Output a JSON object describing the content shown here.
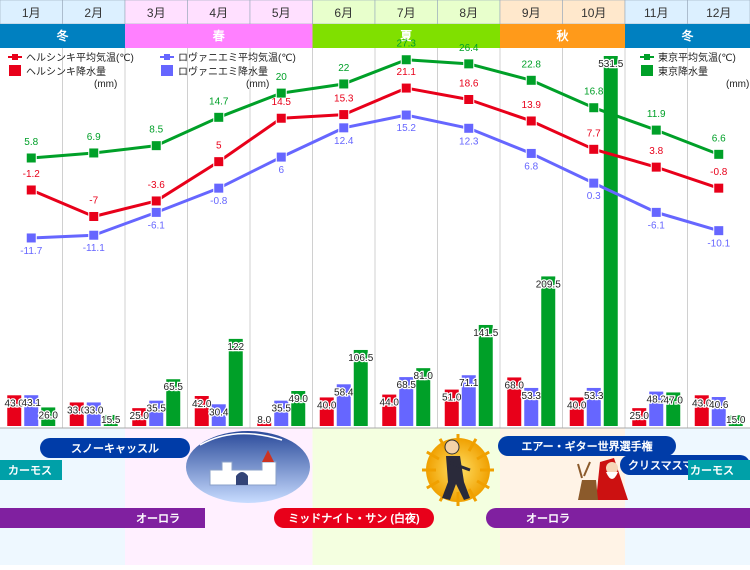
{
  "colors": {
    "helsinki": "#e8001a",
    "rovaniemi": "#6666ff",
    "tokyo": "#00a028",
    "season_winter": "#0080c0",
    "season_spring": "#ff80ff",
    "season_summer": "#80e000",
    "season_autumn": "#ff9a1a",
    "event_blue": "#003ca8",
    "event_purple": "#8020a0",
    "event_teal": "#00a0a8"
  },
  "chart_data": {
    "type": "line",
    "categories": [
      "1月",
      "2月",
      "3月",
      "4月",
      "5月",
      "6月",
      "7月",
      "8月",
      "9月",
      "10月",
      "11月",
      "12月"
    ],
    "seasons": [
      {
        "label": "冬",
        "months": [
          "1月",
          "2月"
        ],
        "color_key": "season_winter"
      },
      {
        "label": "春",
        "months": [
          "3月",
          "4月",
          "5月"
        ],
        "color_key": "season_spring"
      },
      {
        "label": "夏",
        "months": [
          "6月",
          "7月",
          "8月"
        ],
        "color_key": "season_summer"
      },
      {
        "label": "秋",
        "months": [
          "9月",
          "10月"
        ],
        "color_key": "season_autumn"
      },
      {
        "label": "冬",
        "months": [
          "11月",
          "12月"
        ],
        "color_key": "season_winter"
      }
    ],
    "temperature_series": [
      {
        "name": "東京平均気温(℃)",
        "color_key": "tokyo",
        "values": [
          5.8,
          6.9,
          8.5,
          14.7,
          20.0,
          22.0,
          27.3,
          26.4,
          22.8,
          16.8,
          11.9,
          6.6
        ]
      },
      {
        "name": "ヘルシンキ平均気温(℃)",
        "color_key": "helsinki",
        "values": [
          -1.2,
          -7.0,
          -3.6,
          5.0,
          14.5,
          15.3,
          21.1,
          18.6,
          13.9,
          7.7,
          3.8,
          -0.8
        ]
      },
      {
        "name": "ロヴァニエミ平均気温(℃)",
        "color_key": "rovaniemi",
        "values": [
          -11.7,
          -11.1,
          -6.1,
          -0.8,
          6.0,
          12.4,
          15.2,
          12.3,
          6.8,
          0.3,
          -6.1,
          -10.1
        ]
      }
    ],
    "precipitation_series": [
      {
        "name": "ヘルシンキ降水量(mm)",
        "color_key": "helsinki",
        "values": [
          43.0,
          33.0,
          25.0,
          42.0,
          8.0,
          40.0,
          44.0,
          51.0,
          68.0,
          40.0,
          25.0,
          43.0
        ]
      },
      {
        "name": "ロヴァニエミ降水量(mm)",
        "color_key": "rovaniemi",
        "values": [
          43.1,
          33.0,
          35.5,
          30.4,
          35.5,
          58.4,
          68.5,
          71.1,
          53.3,
          53.3,
          48.2,
          40.6
        ]
      },
      {
        "name": "東京降水量(mm)",
        "color_key": "tokyo",
        "values": [
          26.0,
          15.5,
          65.5,
          122,
          49.0,
          106.5,
          81.0,
          141.5,
          209.5,
          531.5,
          47.0,
          15.0
        ]
      }
    ],
    "precipitation_label_text": [
      [
        "43.0",
        "43.1",
        "26.0"
      ],
      [
        "33.0",
        "33.0",
        "15.5"
      ],
      [
        "25.0",
        "35.5",
        "65.5"
      ],
      [
        "42.0",
        "30.4",
        "122"
      ],
      [
        "8.0",
        "35.5",
        "49.0"
      ],
      [
        "40.0",
        "58.4",
        "106.5"
      ],
      [
        "44.0",
        "68.5",
        "81.0"
      ],
      [
        "51.0",
        "71.1",
        "141.5"
      ],
      [
        "68.0",
        "53.3",
        "209.5"
      ],
      [
        "40.0",
        "53.3",
        "531.5"
      ],
      [
        "25.0",
        "48.2",
        "47.0"
      ],
      [
        "43.0",
        "40.6",
        "15.0"
      ]
    ],
    "legend_left": [
      {
        "text": "ヘルシンキ平均気温(℃)",
        "color_key": "helsinki",
        "kind": "line"
      },
      {
        "text": "ヘルシンキ降水量",
        "sub": "(mm)",
        "color_key": "helsinki",
        "kind": "bar"
      }
    ],
    "legend_middle": [
      {
        "text": "ロヴァニエミ平均気温(℃)",
        "color_key": "rovaniemi",
        "kind": "line"
      },
      {
        "text": "ロヴァニエミ降水量",
        "sub": "(mm)",
        "color_key": "rovaniemi",
        "kind": "bar"
      }
    ],
    "legend_right": [
      {
        "text": "東京平均気温(℃)",
        "color_key": "tokyo",
        "kind": "line"
      },
      {
        "text": "東京降水量",
        "sub": "(mm)",
        "color_key": "tokyo",
        "kind": "bar"
      }
    ]
  },
  "events": [
    {
      "label": "スノーキャッスル",
      "color_key": "event_blue"
    },
    {
      "label": "カーモス",
      "color_key": "event_teal"
    },
    {
      "label": "オーロラ",
      "color_key": "event_purple"
    },
    {
      "label": "ミッドナイト・サン (白夜)",
      "color_key": "helsinki"
    },
    {
      "label": "エアー・ギター世界選手権",
      "color_key": "event_blue"
    },
    {
      "label": "クリスマスマーケット",
      "color_key": "event_blue"
    },
    {
      "label": "カーモス",
      "color_key": "event_teal"
    },
    {
      "label": "オーロラ",
      "color_key": "event_purple"
    }
  ]
}
